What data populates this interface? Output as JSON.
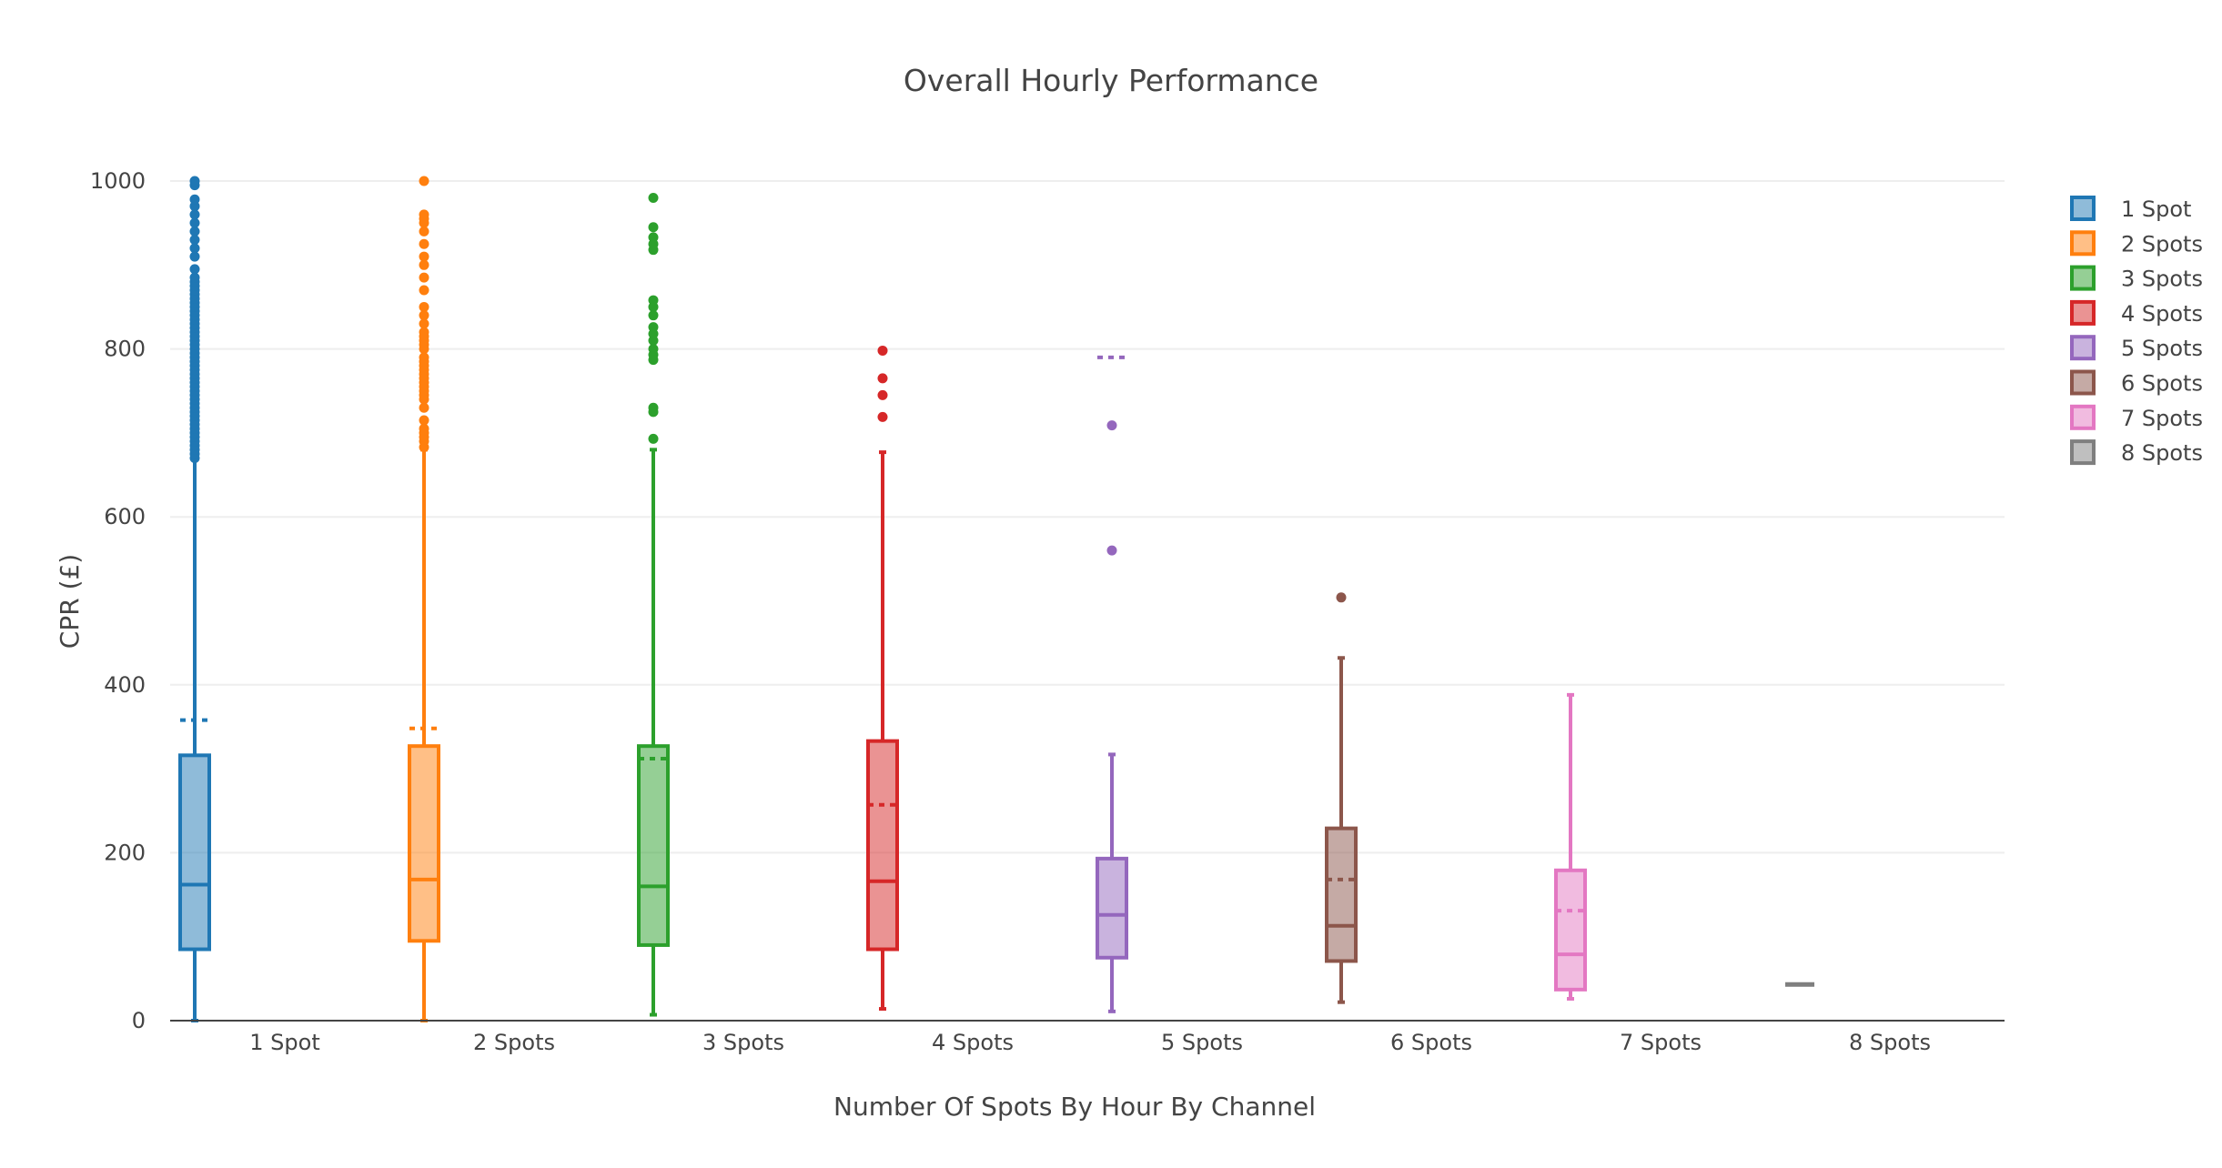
{
  "chart_data": {
    "type": "box",
    "title": "Overall Hourly Performance",
    "xlabel": "Number Of Spots By Hour By Channel",
    "ylabel": "CPR (£)",
    "ylim": [
      0,
      1000
    ],
    "yticks": [
      0,
      200,
      400,
      600,
      800,
      1000
    ],
    "grid": true,
    "legend_position": "top-right",
    "categories": [
      "1 Spot",
      "2 Spots",
      "3 Spots",
      "4 Spots",
      "5 Spots",
      "6 Spots",
      "7 Spots",
      "8 Spots"
    ],
    "series": [
      {
        "name": "1 Spot",
        "color": "#1f77b4",
        "min": 0,
        "q1": 85,
        "median": 162,
        "q3": 316,
        "upper_fence": 668,
        "mean": 358,
        "outliers": [
          670,
          675,
          680,
          685,
          690,
          695,
          700,
          705,
          710,
          715,
          720,
          725,
          730,
          735,
          740,
          745,
          750,
          755,
          760,
          765,
          770,
          775,
          780,
          785,
          790,
          795,
          800,
          805,
          810,
          815,
          820,
          825,
          830,
          835,
          840,
          845,
          850,
          855,
          860,
          865,
          870,
          875,
          880,
          885,
          895,
          910,
          920,
          930,
          940,
          950,
          960,
          970,
          978,
          995,
          1000
        ]
      },
      {
        "name": "2 Spots",
        "color": "#ff7f0e",
        "min": 0,
        "q1": 95,
        "median": 168,
        "q3": 327,
        "upper_fence": 680,
        "mean": 348,
        "outliers": [
          683,
          690,
          695,
          700,
          705,
          715,
          730,
          740,
          745,
          750,
          755,
          760,
          765,
          770,
          775,
          780,
          785,
          790,
          800,
          805,
          810,
          815,
          820,
          830,
          840,
          850,
          870,
          885,
          900,
          910,
          925,
          940,
          950,
          955,
          960,
          1000
        ]
      },
      {
        "name": "3 Spots",
        "color": "#2ca02c",
        "min": 7,
        "q1": 90,
        "median": 160,
        "q3": 327,
        "upper_fence": 680,
        "mean": 312,
        "outliers": [
          693,
          725,
          730,
          787,
          793,
          800,
          810,
          818,
          826,
          840,
          850,
          858,
          918,
          925,
          933,
          945,
          980
        ]
      },
      {
        "name": "4 Spots",
        "color": "#d62728",
        "min": 14,
        "q1": 85,
        "median": 166,
        "q3": 333,
        "upper_fence": 677,
        "mean": 257,
        "outliers": [
          719,
          745,
          765,
          798
        ]
      },
      {
        "name": "5 Spots",
        "color": "#9467bd",
        "min": 11,
        "q1": 75,
        "median": 126,
        "q3": 193,
        "upper_fence": 317,
        "mean": 790,
        "outliers": [
          560,
          709
        ]
      },
      {
        "name": "6 Spots",
        "color": "#8c564b",
        "min": 22,
        "q1": 71,
        "median": 113,
        "q3": 229,
        "upper_fence": 432,
        "mean": 168,
        "outliers": [
          504
        ]
      },
      {
        "name": "7 Spots",
        "color": "#e377c2",
        "min": 26,
        "q1": 37,
        "median": 79,
        "q3": 179,
        "upper_fence": 388,
        "mean": 131,
        "outliers": []
      },
      {
        "name": "8 Spots",
        "color": "#7f7f7f",
        "min": 43,
        "q1": 43,
        "median": 43,
        "q3": 43,
        "upper_fence": 43,
        "mean": 43,
        "outliers": []
      }
    ]
  }
}
